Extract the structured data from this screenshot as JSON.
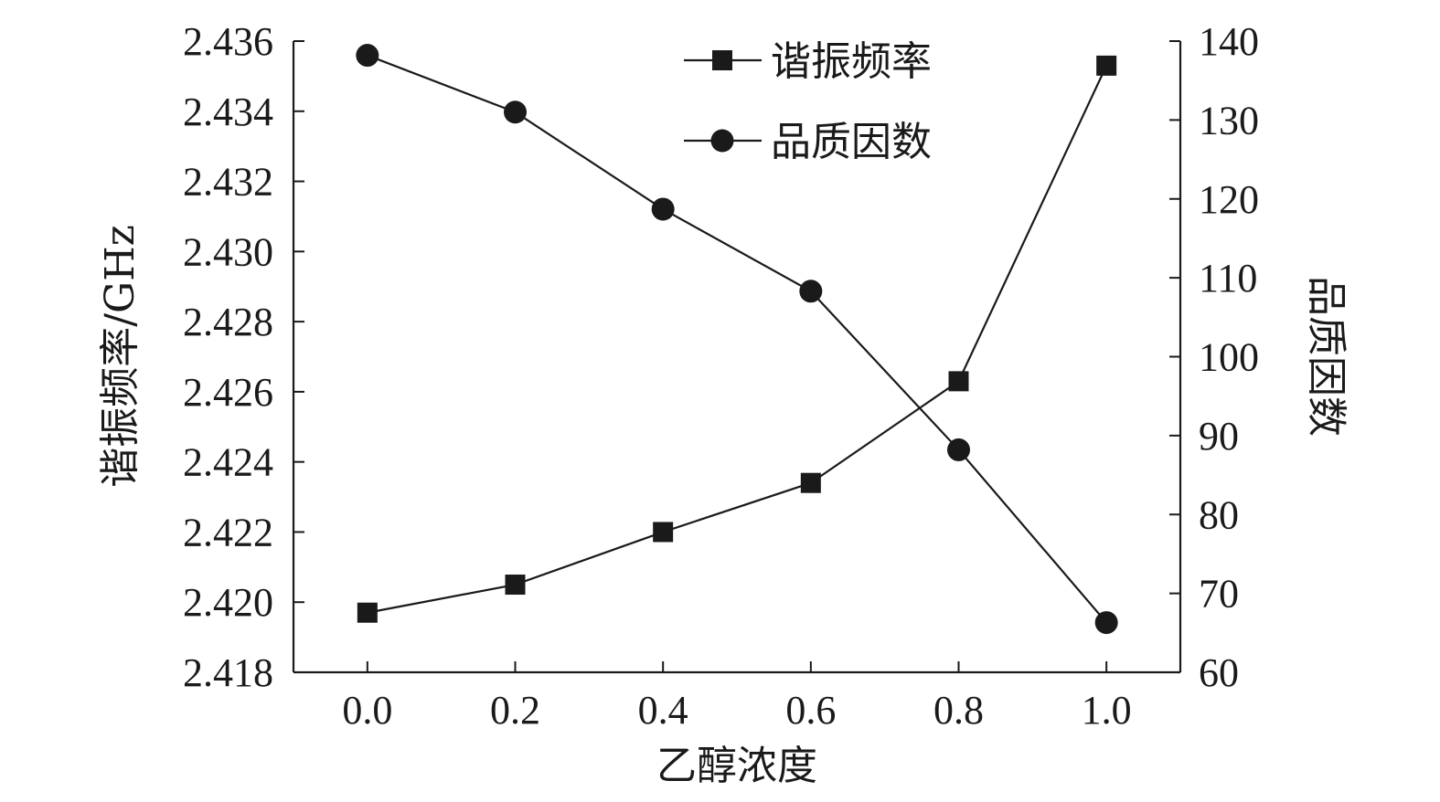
{
  "chart_data": {
    "type": "line",
    "x": [
      0.0,
      0.2,
      0.4,
      0.6,
      0.8,
      1.0
    ],
    "x_tick_labels": [
      "0.0",
      "0.2",
      "0.4",
      "0.6",
      "0.8",
      "1.0"
    ],
    "xlabel": "乙醇浓度",
    "xlim": [
      -0.1,
      1.1
    ],
    "left_axis": {
      "label": "谐振频率/GHz",
      "ylim": [
        2.418,
        2.436
      ],
      "ticks": [
        2.418,
        2.42,
        2.422,
        2.424,
        2.426,
        2.428,
        2.43,
        2.432,
        2.434,
        2.436
      ],
      "tick_labels": [
        "2.418",
        "2.420",
        "2.422",
        "2.424",
        "2.426",
        "2.428",
        "2.430",
        "2.432",
        "2.434",
        "2.436"
      ]
    },
    "right_axis": {
      "label": "品质因数",
      "ylim": [
        60,
        140
      ],
      "ticks": [
        60,
        70,
        80,
        90,
        100,
        110,
        120,
        130,
        140
      ],
      "tick_labels": [
        "60",
        "70",
        "80",
        "90",
        "100",
        "110",
        "120",
        "130",
        "140"
      ]
    },
    "series": [
      {
        "name": "谐振频率",
        "axis": "left",
        "marker": "square",
        "values": [
          2.4197,
          2.4205,
          2.422,
          2.4234,
          2.4263,
          2.4353
        ]
      },
      {
        "name": "品质因数",
        "axis": "right",
        "marker": "circle",
        "values": [
          138.2,
          131.0,
          118.7,
          108.3,
          88.2,
          66.3
        ]
      }
    ],
    "legend_position": "top-right",
    "grid": false,
    "colors": {
      "line": "#1a1a1a",
      "marker": "#1a1a1a",
      "background": "#ffffff"
    }
  }
}
